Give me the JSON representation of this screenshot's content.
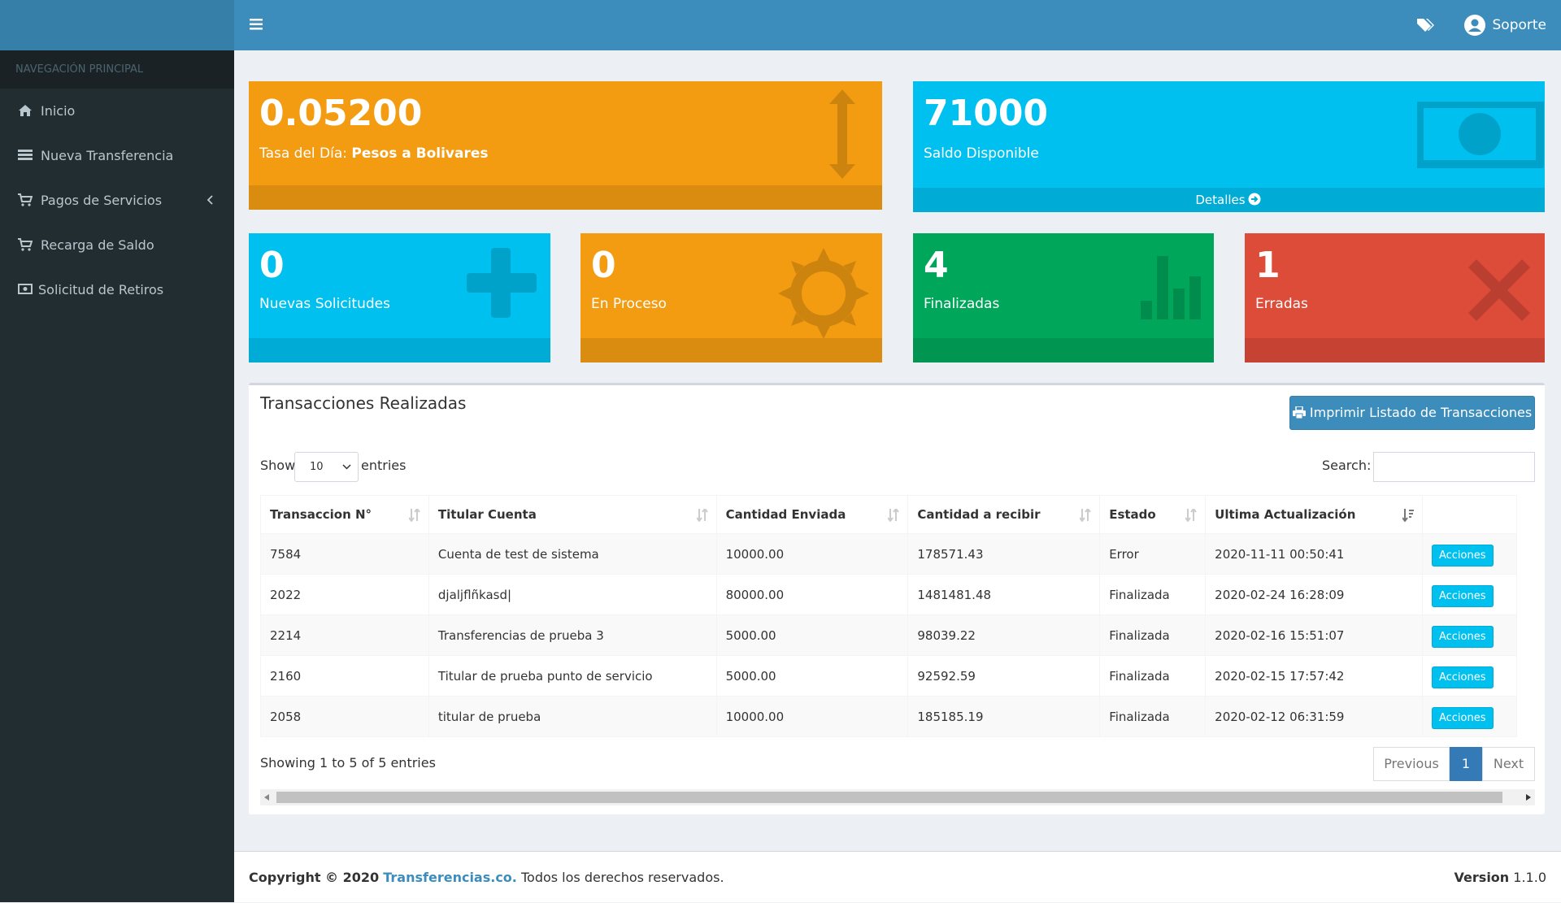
{
  "header": {
    "user": "Soporte"
  },
  "sidebar": {
    "heading": "NAVEGACIÓN PRINCIPAL",
    "items": [
      "Inicio",
      "Nueva Transferencia",
      "Pagos de Servicios",
      "Recarga de Saldo",
      "Solicitud de Retiros"
    ]
  },
  "stats": [
    {
      "value": "0.05200",
      "label": "Tasa del Día:",
      "label_bold": "Pesos a Bolivares"
    },
    {
      "value": "71000",
      "label": "Saldo Disponible",
      "footer": "Detalles"
    },
    {
      "value": "0",
      "label": "Nuevas Solicitudes"
    },
    {
      "value": "0",
      "label": "En Proceso"
    },
    {
      "value": "4",
      "label": "Finalizadas"
    },
    {
      "value": "1",
      "label": "Erradas"
    }
  ],
  "table": {
    "title": "Transacciones Realizadas",
    "button": "Imprimir Listado de Transacciones",
    "show": "Show",
    "length": "10",
    "entries": "entries",
    "search": "Search:",
    "columns": [
      "Transaccion N°",
      "Titular Cuenta",
      "Cantidad Enviada",
      "Cantidad a recibir",
      "Estado",
      "Ultima Actualización"
    ],
    "rows": [
      [
        "7584",
        "Cuenta de test de sistema",
        "10000.00",
        "178571.43",
        "Error",
        "2020-11-11 00:50:41"
      ],
      [
        "2022",
        "djaljflñkasd|",
        "80000.00",
        "1481481.48",
        "Finalizada",
        "2020-02-24 16:28:09"
      ],
      [
        "2214",
        "Transferencias de prueba 3",
        "5000.00",
        "98039.22",
        "Finalizada",
        "2020-02-16 15:51:07"
      ],
      [
        "2160",
        "Titular de prueba punto de servicio",
        "5000.00",
        "92592.59",
        "Finalizada",
        "2020-02-15 17:57:42"
      ],
      [
        "2058",
        "titular de prueba",
        "10000.00",
        "185185.19",
        "Finalizada",
        "2020-02-12 06:31:59"
      ]
    ],
    "action": "Acciones",
    "info": "Showing 1 to 5 of 5 entries",
    "pagination": [
      "Previous",
      "1",
      "Next"
    ]
  },
  "footer": {
    "copyright": "Copyright © 2020",
    "link": "Transferencias.co.",
    "rest": "Todos los derechos reservados.",
    "version_label": "Version",
    "version": "1.1.0"
  }
}
